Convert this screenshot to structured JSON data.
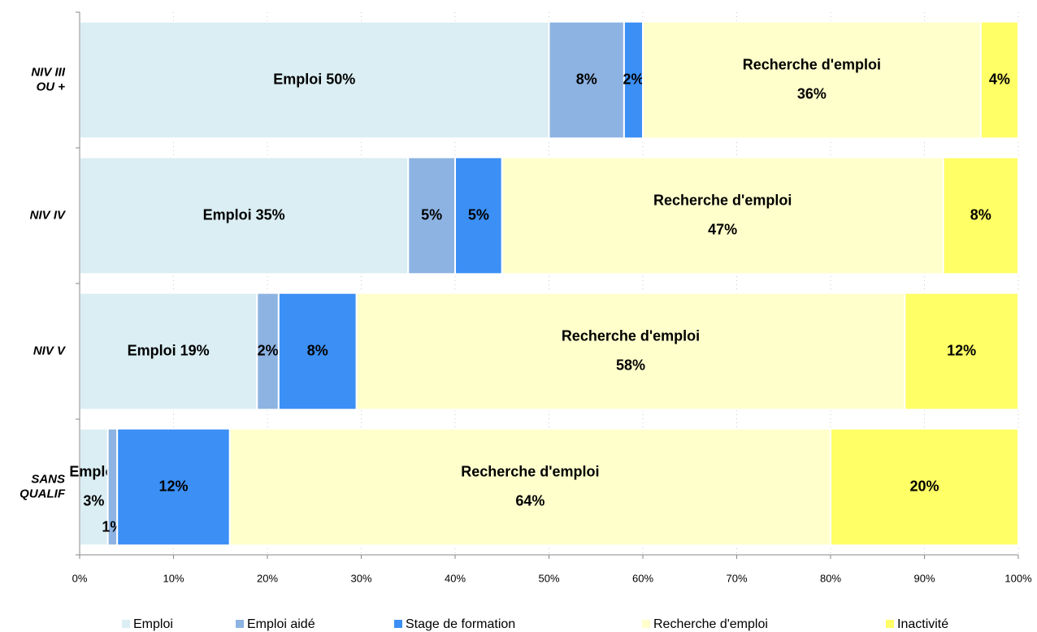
{
  "chart_data": {
    "type": "stacked_bar_horizontal",
    "categories": [
      [
        "NIV III",
        "OU +"
      ],
      [
        "NIV IV"
      ],
      [
        "NIV V"
      ],
      [
        "SANS",
        "QUALIF"
      ]
    ],
    "series": [
      {
        "name": "Emploi",
        "color": "#daeef3",
        "values": [
          50,
          35,
          18.9,
          3
        ],
        "value_labels": [
          [
            "Emploi 50%"
          ],
          [
            "Emploi 35%"
          ],
          [
            "Emploi 19%"
          ],
          [
            "Emploi",
            "3%"
          ]
        ]
      },
      {
        "name": "Emploi aidé",
        "color": "#8db3e2",
        "values": [
          8,
          5,
          2.3,
          1
        ],
        "value_labels": [
          [
            "8%"
          ],
          [
            "5%"
          ],
          [
            "2%"
          ],
          [
            "1%"
          ]
        ]
      },
      {
        "name": "Stage de formation",
        "color": "#3b8ff5",
        "values": [
          2,
          5,
          8.3,
          12
        ],
        "value_labels": [
          [
            "2%"
          ],
          [
            "5%"
          ],
          [
            "8%"
          ],
          [
            "12%"
          ]
        ]
      },
      {
        "name": "Recherche d'emploi",
        "color": "#ffffcc",
        "values": [
          36,
          47,
          58.4,
          64
        ],
        "value_labels": [
          [
            "Recherche d'emploi",
            "36%"
          ],
          [
            "Recherche d'emploi",
            "47%"
          ],
          [
            "Recherche d'emploi",
            "58%"
          ],
          [
            "Recherche d'emploi",
            "64%"
          ]
        ]
      },
      {
        "name": "Inactivité",
        "color": "#ffff66",
        "values": [
          4,
          8,
          12.1,
          20
        ],
        "value_labels": [
          [
            "4%"
          ],
          [
            "8%"
          ],
          [
            "12%"
          ],
          [
            "20%"
          ]
        ]
      }
    ],
    "xlim": [
      0,
      100
    ],
    "xticks": [
      {
        "value": 0,
        "label": "0%"
      },
      {
        "value": 10,
        "label": "10%"
      },
      {
        "value": 20,
        "label": "20%"
      },
      {
        "value": 30,
        "label": "30%"
      },
      {
        "value": 40,
        "label": "40%"
      },
      {
        "value": 50,
        "label": "50%"
      },
      {
        "value": 60,
        "label": "60%"
      },
      {
        "value": 70,
        "label": "70%"
      },
      {
        "value": 80,
        "label": "80%"
      },
      {
        "value": 90,
        "label": "90%"
      },
      {
        "value": 100,
        "label": "100%"
      }
    ],
    "grid": true,
    "legend": "bottom"
  }
}
